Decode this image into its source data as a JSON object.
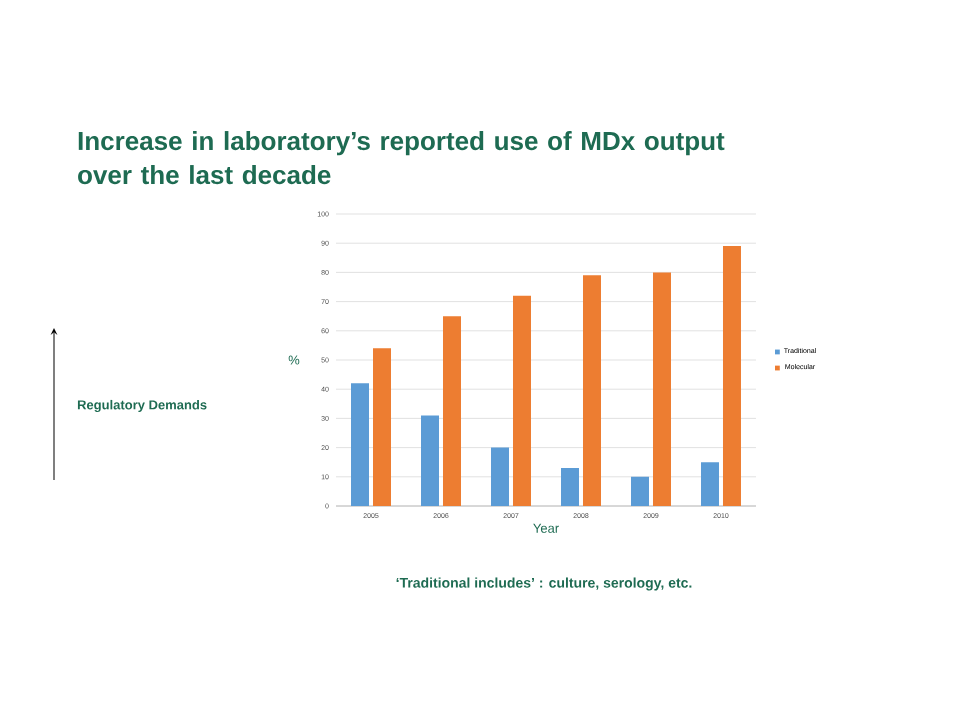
{
  "chart_data": {
    "type": "bar",
    "title": "Increase in laboratory’s reported use of MDx output over the last decade",
    "xlabel": "Year",
    "ylabel": "%",
    "categories": [
      "2005",
      "2006",
      "2007",
      "2008",
      "2009",
      "2010"
    ],
    "series": [
      {
        "name": "Traditional",
        "color": "#5b9bd5",
        "values": [
          42,
          31,
          20,
          13,
          10,
          15
        ]
      },
      {
        "name": "Molecular",
        "color": "#ed7d31",
        "values": [
          54,
          65,
          72,
          79,
          80,
          89
        ]
      }
    ],
    "ylim": [
      0,
      100
    ],
    "yticks": [
      0,
      10,
      20,
      30,
      40,
      50,
      60,
      70,
      80,
      90,
      100
    ],
    "grid": "y",
    "legend": "right",
    "annotations": [
      "Regulatory Demands",
      "‘Traditional includes’ : culture, serology, etc."
    ]
  }
}
